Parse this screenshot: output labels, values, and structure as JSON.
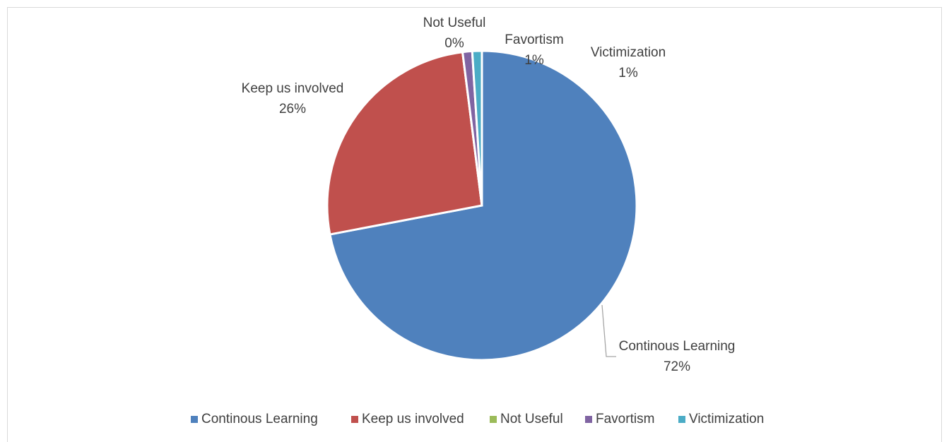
{
  "chart_data": {
    "type": "pie",
    "categories": [
      "Continous Learning",
      "Keep us involved",
      "Not Useful",
      "Favortism",
      "Victimization"
    ],
    "values": [
      72,
      26,
      0,
      1,
      1
    ],
    "value_labels": [
      "72%",
      "26%",
      "0%",
      "1%",
      "1%"
    ],
    "colors": [
      "#4f81bd",
      "#c0504d",
      "#9bbb59",
      "#8064a2",
      "#4bacc6"
    ],
    "legend": "bottom"
  }
}
